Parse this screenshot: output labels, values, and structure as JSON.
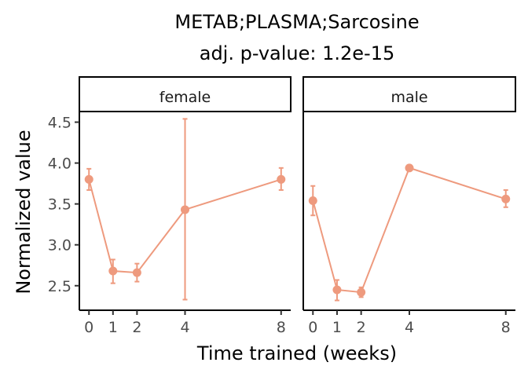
{
  "chart_data": {
    "type": "line",
    "title": "METAB;PLASMA;Sarcosine",
    "subtitle": "adj. p-value: 1.2e-15",
    "xlabel": "Time trained (weeks)",
    "ylabel": "Normalized value",
    "ylim": [
      2.2,
      4.63
    ],
    "xlim": [
      -0.4,
      8.4
    ],
    "x_ticks": [
      0,
      1,
      2,
      4,
      8
    ],
    "y_ticks": [
      2.5,
      3.0,
      3.5,
      4.0,
      4.5
    ],
    "y_tick_labels": [
      "2.5",
      "3.0",
      "3.5",
      "4.0",
      "4.5"
    ],
    "grid": false,
    "series_color": "#EE9A7E",
    "facets": [
      {
        "label": "female",
        "points": [
          {
            "x": 0,
            "y": 3.8,
            "lo": 3.67,
            "hi": 3.93
          },
          {
            "x": 1,
            "y": 2.68,
            "lo": 2.53,
            "hi": 2.82
          },
          {
            "x": 2,
            "y": 2.66,
            "lo": 2.55,
            "hi": 2.77
          },
          {
            "x": 4,
            "y": 3.43,
            "lo": 2.33,
            "hi": 4.54
          },
          {
            "x": 8,
            "y": 3.8,
            "lo": 3.67,
            "hi": 3.94
          }
        ]
      },
      {
        "label": "male",
        "points": [
          {
            "x": 0,
            "y": 3.54,
            "lo": 3.36,
            "hi": 3.72
          },
          {
            "x": 1,
            "y": 2.45,
            "lo": 2.32,
            "hi": 2.57
          },
          {
            "x": 2,
            "y": 2.42,
            "lo": 2.36,
            "hi": 2.48
          },
          {
            "x": 4,
            "y": 3.94,
            "lo": 3.92,
            "hi": 3.96
          },
          {
            "x": 8,
            "y": 3.56,
            "lo": 3.46,
            "hi": 3.67
          }
        ]
      }
    ]
  }
}
